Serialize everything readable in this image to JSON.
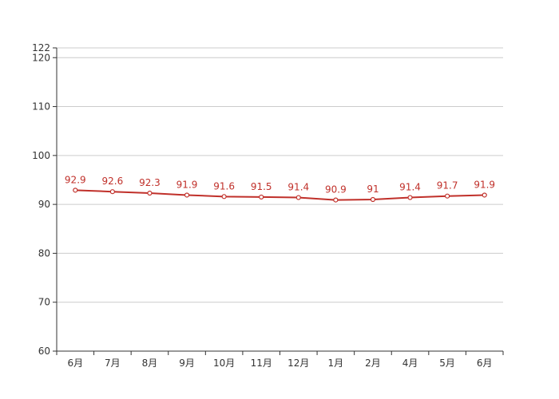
{
  "chart_data": {
    "type": "line",
    "categories": [
      "6月",
      "7月",
      "8月",
      "9月",
      "10月",
      "11月",
      "12月",
      "1月",
      "2月",
      "4月",
      "5月",
      "6月"
    ],
    "series": [
      {
        "values": [
          92.9,
          92.6,
          92.3,
          91.9,
          91.6,
          91.5,
          91.4,
          90.9,
          91,
          91.4,
          91.7,
          91.9
        ]
      }
    ],
    "data_labels": [
      "92.9",
      "92.6",
      "92.3",
      "91.9",
      "91.6",
      "91.5",
      "91.4",
      "90.9",
      "91",
      "91.4",
      "91.7",
      "91.9"
    ],
    "y_ticks": [
      60,
      70,
      80,
      90,
      100,
      110,
      120,
      122
    ],
    "ylim": [
      60,
      122
    ],
    "grid": true,
    "colors": {
      "line": "#c0302a",
      "grid": "#cccccc",
      "axis": "#333333",
      "point_fill": "#ffffff"
    }
  }
}
